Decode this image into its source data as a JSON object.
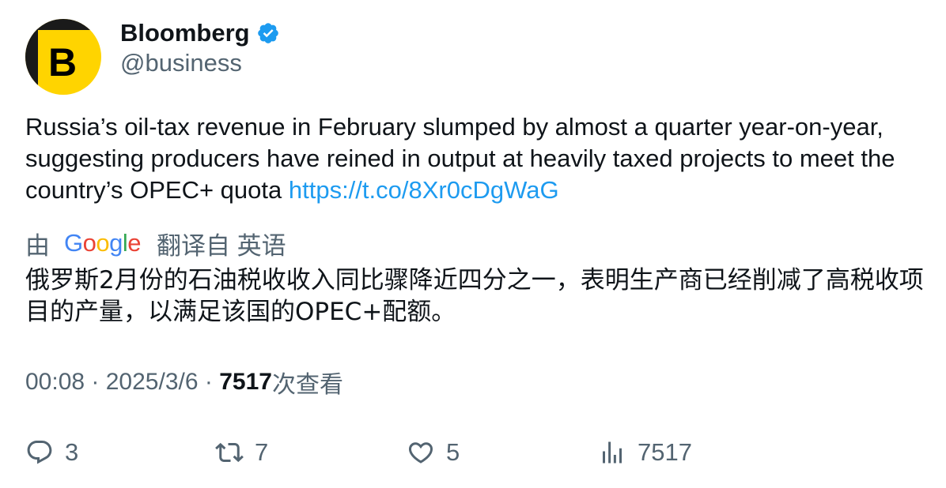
{
  "author": {
    "avatar_letter": "B",
    "display_name": "Bloomberg",
    "handle": "@business",
    "verified": true
  },
  "tweet": {
    "text": "Russia’s oil-tax revenue in February slumped by almost a quarter year-on-year, suggesting producers have reined in output at heavily taxed projects to meet the country’s OPEC+ quota ",
    "link": "https://t.co/8Xr0cDgWaG"
  },
  "translation": {
    "prefix": "由",
    "provider": "Google",
    "suffix": "翻译自 英语",
    "text": "俄罗斯2月份的石油税收收入同比骤降近四分之一，表明生产商已经削减了高税收项目的产量，以满足该国的OPEC+配额。"
  },
  "meta": {
    "time": "00:08",
    "separator": " · ",
    "date": "2025/3/6",
    "views_count": "7517",
    "views_label": "次查看"
  },
  "actions": {
    "replies": "3",
    "reposts": "7",
    "likes": "5",
    "views": "7517"
  },
  "colors": {
    "link": "#1d9bf0",
    "secondary_text": "#536471",
    "primary_text": "#0f1419",
    "avatar_bg": "#ffd400",
    "verified": "#1d9bf0"
  }
}
